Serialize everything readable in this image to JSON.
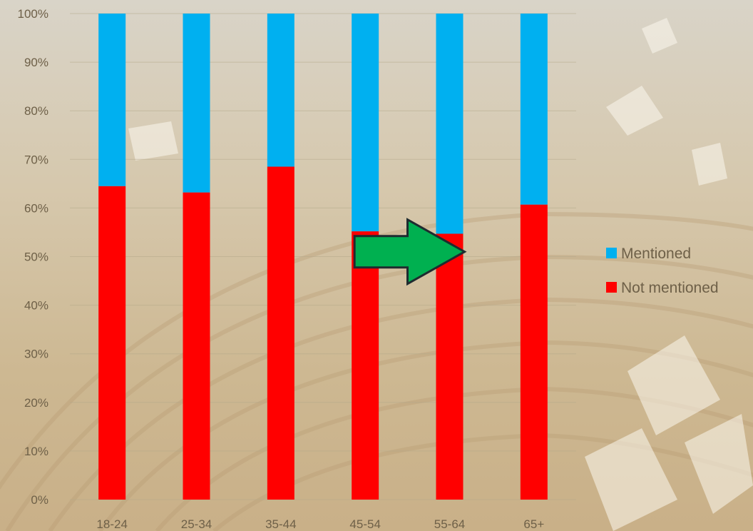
{
  "chart_data": {
    "type": "bar",
    "stacked": true,
    "percent_stacked": true,
    "categories": [
      "18-24",
      "25-34",
      "35-44",
      "45-54",
      "55-64",
      "65+"
    ],
    "series": [
      {
        "name": "Not mentioned",
        "color": "#ff0000",
        "values": [
          64.5,
          63.2,
          68.5,
          55.2,
          54.7,
          60.7
        ]
      },
      {
        "name": "Mentioned",
        "color": "#00b0f0",
        "values": [
          35.5,
          36.8,
          31.5,
          44.8,
          45.3,
          39.3
        ]
      }
    ],
    "y_ticks": [
      "0%",
      "10%",
      "20%",
      "30%",
      "40%",
      "50%",
      "60%",
      "70%",
      "80%",
      "90%",
      "100%"
    ],
    "ylim": [
      0,
      100
    ],
    "grid": true,
    "legend_position": "right",
    "legend_order": [
      "Mentioned",
      "Not mentioned"
    ],
    "annotation": {
      "type": "arrow",
      "from_category": "45-54",
      "to_category": "55-64",
      "at_value": 51,
      "color": "#00b050"
    }
  }
}
